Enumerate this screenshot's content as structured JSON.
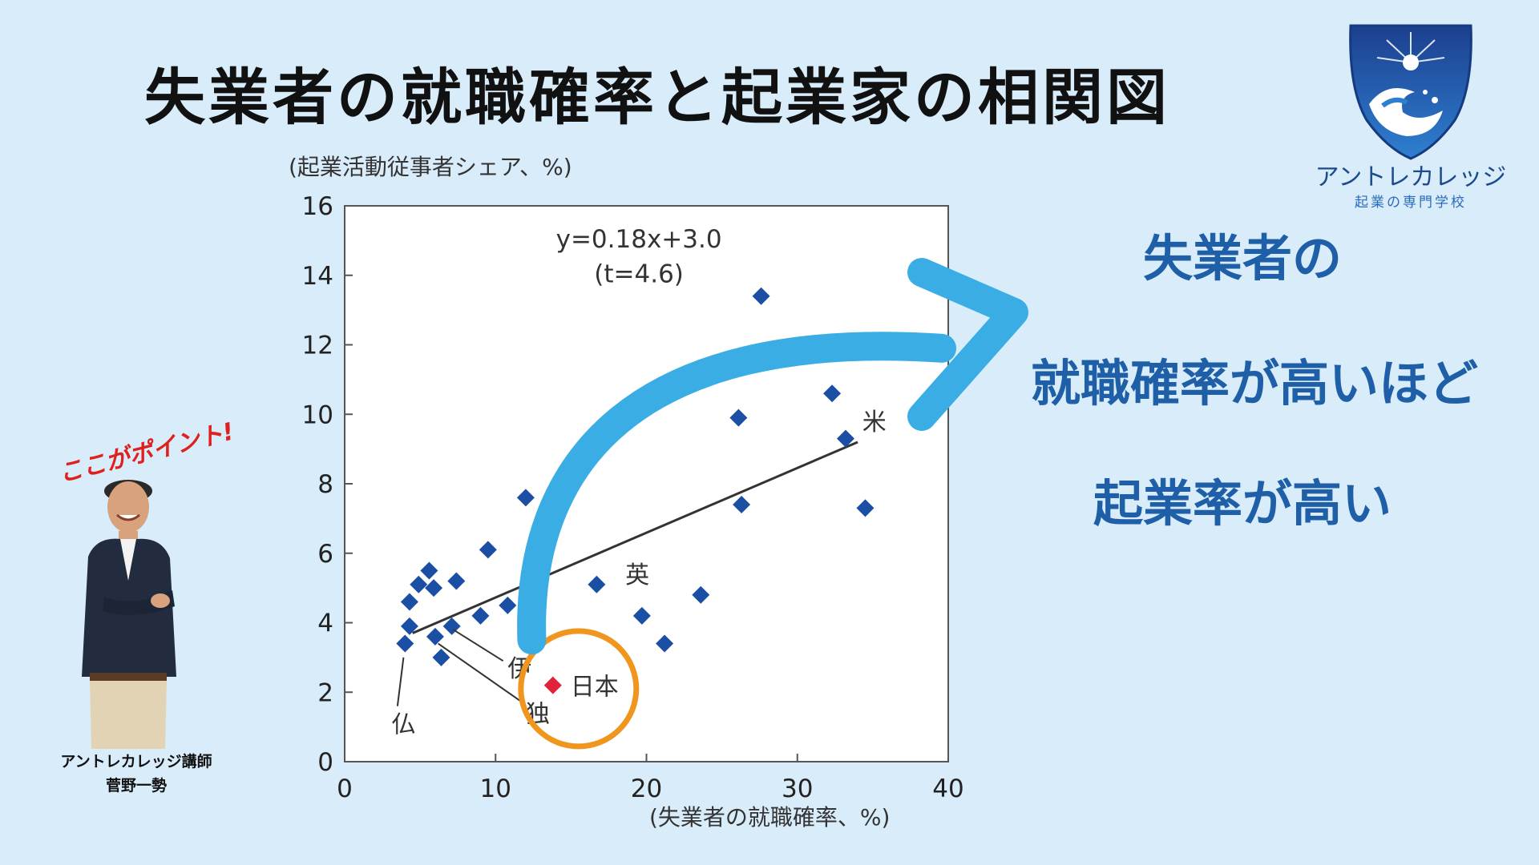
{
  "header": {
    "title": "失業者の就職確率と起業家の相関図"
  },
  "logo": {
    "name": "アントレカレッジ",
    "subtitle": "起業の専門学校"
  },
  "callout": {
    "line1": "失業者の",
    "line2": "就職確率が高いほど",
    "line3": "起業率が高い"
  },
  "instructor": {
    "point_label": "ここがポイント!",
    "caption_line1": "アントレカレッジ講師",
    "caption_line2": "菅野一勢"
  },
  "colors": {
    "background": "#d8ecfa",
    "title_blue": "#1f5fa8",
    "point_blue": "#1a4fa3",
    "japan_red": "#e0223b",
    "circle_orange": "#f0961e",
    "arrow_blue": "#3aaee4"
  },
  "chart_data": {
    "type": "scatter",
    "ylabel": "(起業活動従事者シェア、%)",
    "xlabel": "(失業者の就職確率、%)",
    "xlim": [
      0,
      40
    ],
    "ylim": [
      0,
      16
    ],
    "xticks": [
      "0",
      "10",
      "20",
      "30",
      "40"
    ],
    "yticks": [
      "0",
      "2",
      "4",
      "6",
      "8",
      "10",
      "12",
      "14",
      "16"
    ],
    "equation": "y=0.18x+3.0",
    "t_stat": "(t=4.6)",
    "trendline": {
      "x": [
        4.5,
        34
      ],
      "y": [
        3.7,
        9.2
      ]
    },
    "points": [
      {
        "x": 4.0,
        "y": 3.4
      },
      {
        "x": 4.3,
        "y": 3.9
      },
      {
        "x": 4.3,
        "y": 4.6
      },
      {
        "x": 4.9,
        "y": 5.1
      },
      {
        "x": 5.6,
        "y": 5.5
      },
      {
        "x": 5.9,
        "y": 5.0
      },
      {
        "x": 6.0,
        "y": 3.6
      },
      {
        "x": 6.4,
        "y": 3.0
      },
      {
        "x": 7.1,
        "y": 3.9
      },
      {
        "x": 7.4,
        "y": 5.2
      },
      {
        "x": 9.0,
        "y": 4.2
      },
      {
        "x": 9.5,
        "y": 6.1
      },
      {
        "x": 10.8,
        "y": 4.5
      },
      {
        "x": 12.0,
        "y": 7.6
      },
      {
        "x": 16.7,
        "y": 5.1
      },
      {
        "x": 19.7,
        "y": 4.2
      },
      {
        "x": 21.2,
        "y": 3.4
      },
      {
        "x": 23.6,
        "y": 4.8
      },
      {
        "x": 26.1,
        "y": 9.9
      },
      {
        "x": 26.3,
        "y": 7.4
      },
      {
        "x": 27.6,
        "y": 13.4
      },
      {
        "x": 32.3,
        "y": 10.6
      },
      {
        "x": 33.2,
        "y": 9.3
      },
      {
        "x": 34.5,
        "y": 7.3
      }
    ],
    "highlight": {
      "label": "日本",
      "x": 13.8,
      "y": 2.2
    },
    "annotations": [
      {
        "label": "米",
        "x": 34.3,
        "y": 9.8
      },
      {
        "label": "英",
        "x": 18.6,
        "y": 5.4
      },
      {
        "label": "伊",
        "x": 10.8,
        "y": 2.7
      },
      {
        "label": "独",
        "x": 12.0,
        "y": 1.4
      },
      {
        "label": "仏",
        "x": 3.1,
        "y": 1.1
      }
    ]
  }
}
